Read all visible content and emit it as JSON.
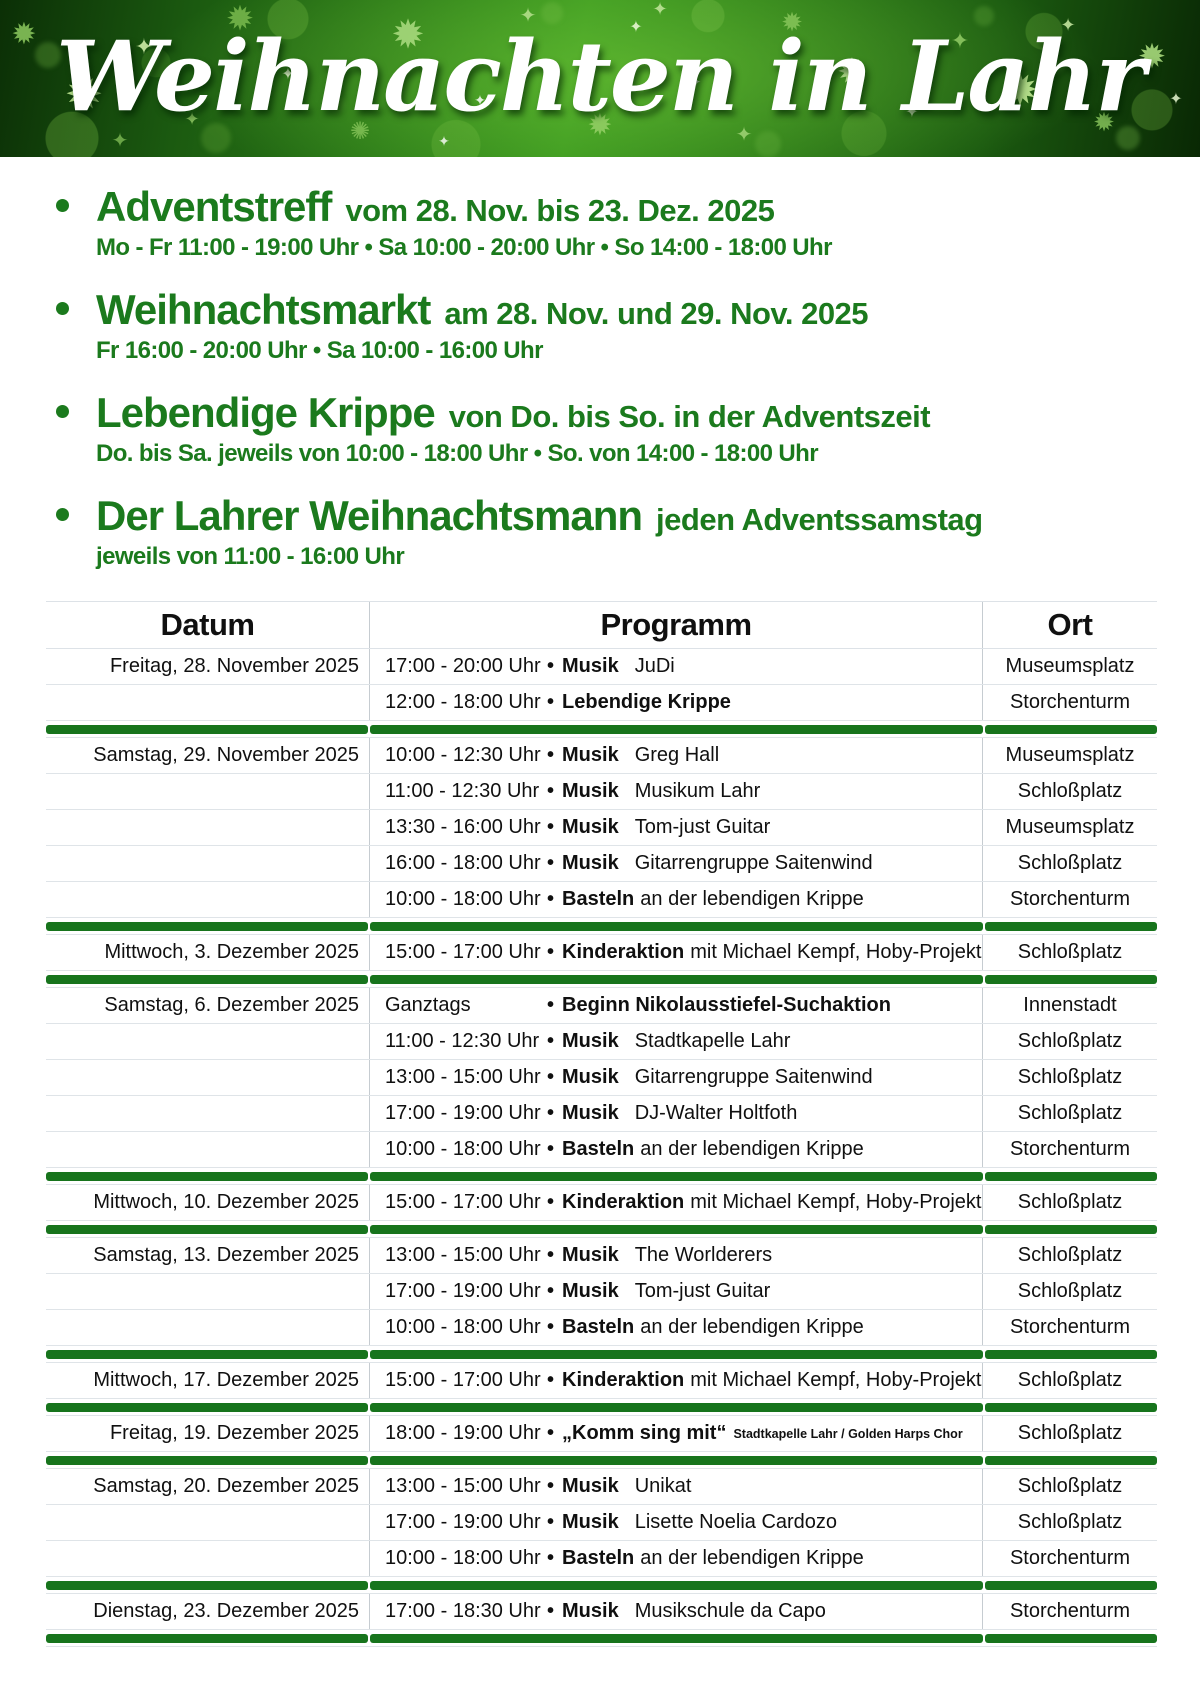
{
  "banner": {
    "title": "Weihnachten in Lahr"
  },
  "colors": {
    "accent_green": "#1b7a1d",
    "divider_green": "#17741c",
    "banner_dark_green": "#0b2f06",
    "banner_bright_green": "#38961e",
    "title_white": "#ffffff"
  },
  "events": [
    {
      "title": "Adventstreff",
      "subtitle": "vom 28. Nov. bis 23. Dez. 2025",
      "times": "Mo - Fr 11:00 - 19:00 Uhr  •  Sa 10:00 - 20:00 Uhr  •  So 14:00 - 18:00 Uhr"
    },
    {
      "title": "Weihnachtsmarkt",
      "subtitle": "am 28. Nov. und 29. Nov. 2025",
      "times": "Fr 16:00 - 20:00 Uhr  •  Sa 10:00 - 16:00 Uhr"
    },
    {
      "title": "Lebendige Krippe",
      "subtitle": "von Do. bis So. in der Adventszeit",
      "times": "Do. bis Sa. jeweils von 10:00 - 18:00 Uhr  •  So. von 14:00 - 18:00 Uhr"
    },
    {
      "title": "Der Lahrer Weihnachtsmann",
      "subtitle": "jeden Adventssamstag",
      "times": "jeweils von 11:00 - 16:00 Uhr"
    }
  ],
  "table": {
    "headers": [
      "Datum",
      "Programm",
      "Ort"
    ],
    "groups": [
      {
        "date": "Freitag, 28. November 2025",
        "rows": [
          {
            "time": "17:00 - 20:00 Uhr",
            "bold": "Musik",
            "rest": "JuDi",
            "small": "",
            "ort": "Museumsplatz"
          },
          {
            "time": "12:00 - 18:00 Uhr",
            "bold": "Lebendige Krippe",
            "rest": "",
            "small": "",
            "ort": "Storchenturm"
          }
        ]
      },
      {
        "date": "Samstag, 29. November 2025",
        "rows": [
          {
            "time": "10:00 - 12:30 Uhr",
            "bold": "Musik",
            "rest": "Greg Hall",
            "small": "",
            "ort": "Museumsplatz"
          },
          {
            "time": "11:00 - 12:30 Uhr",
            "bold": "Musik",
            "rest": "Musikum Lahr",
            "small": "",
            "ort": "Schloßplatz"
          },
          {
            "time": "13:30 - 16:00 Uhr",
            "bold": "Musik",
            "rest": "Tom-just Guitar",
            "small": "",
            "ort": "Museumsplatz"
          },
          {
            "time": "16:00 - 18:00 Uhr",
            "bold": "Musik",
            "rest": "Gitarrengruppe Saitenwind",
            "small": "",
            "ort": "Schloßplatz"
          },
          {
            "time": "10:00 - 18:00 Uhr",
            "bold": "Basteln",
            "rest": "an der lebendigen Krippe",
            "small": "",
            "ort": "Storchenturm"
          }
        ]
      },
      {
        "date": "Mittwoch, 3. Dezember 2025",
        "rows": [
          {
            "time": "15:00 - 17:00 Uhr",
            "bold": "Kinderaktion",
            "rest": "mit Michael Kempf,  Hoby-Projekt",
            "small": "",
            "ort": "Schloßplatz"
          }
        ]
      },
      {
        "date": "Samstag, 6. Dezember 2025",
        "rows": [
          {
            "time": "Ganztags",
            "bold": "Beginn Nikolausstiefel-Suchaktion",
            "rest": "",
            "small": "",
            "ort": "Innenstadt"
          },
          {
            "time": "11:00 - 12:30 Uhr",
            "bold": "Musik",
            "rest": "Stadtkapelle Lahr",
            "small": "",
            "ort": "Schloßplatz"
          },
          {
            "time": "13:00 - 15:00 Uhr",
            "bold": "Musik",
            "rest": "Gitarrengruppe Saitenwind",
            "small": "",
            "ort": "Schloßplatz"
          },
          {
            "time": "17:00 - 19:00 Uhr",
            "bold": "Musik",
            "rest": "DJ-Walter Holtfoth",
            "small": "",
            "ort": "Schloßplatz"
          },
          {
            "time": "10:00 - 18:00 Uhr",
            "bold": "Basteln",
            "rest": "an der lebendigen Krippe",
            "small": "",
            "ort": "Storchenturm"
          }
        ]
      },
      {
        "date": "Mittwoch, 10. Dezember 2025",
        "rows": [
          {
            "time": "15:00 - 17:00 Uhr",
            "bold": "Kinderaktion",
            "rest": "mit Michael Kempf,  Hoby-Projekt",
            "small": "",
            "ort": "Schloßplatz"
          }
        ]
      },
      {
        "date": "Samstag, 13. Dezember 2025",
        "rows": [
          {
            "time": "13:00 - 15:00 Uhr",
            "bold": "Musik",
            "rest": "The Worlderers",
            "small": "",
            "ort": "Schloßplatz"
          },
          {
            "time": "17:00 - 19:00 Uhr",
            "bold": "Musik",
            "rest": "Tom-just Guitar",
            "small": "",
            "ort": "Schloßplatz"
          },
          {
            "time": "10:00 - 18:00 Uhr",
            "bold": "Basteln",
            "rest": "an der lebendigen Krippe",
            "small": "",
            "ort": "Storchenturm"
          }
        ]
      },
      {
        "date": "Mittwoch, 17. Dezember 2025",
        "rows": [
          {
            "time": "15:00 - 17:00 Uhr",
            "bold": "Kinderaktion",
            "rest": "mit Michael Kempf,  Hoby-Projekt",
            "small": "",
            "ort": "Schloßplatz"
          }
        ]
      },
      {
        "date": "Freitag, 19. Dezember 2025",
        "rows": [
          {
            "time": "18:00 - 19:00 Uhr",
            "bold": "„Komm sing mit“",
            "rest": "",
            "small": "Stadtkapelle Lahr / Golden Harps Chor",
            "ort": "Schloßplatz"
          }
        ]
      },
      {
        "date": "Samstag, 20. Dezember 2025",
        "rows": [
          {
            "time": "13:00 - 15:00 Uhr",
            "bold": "Musik",
            "rest": "Unikat",
            "small": "",
            "ort": "Schloßplatz"
          },
          {
            "time": "17:00 - 19:00 Uhr",
            "bold": "Musik",
            "rest": "Lisette Noelia Cardozo",
            "small": "",
            "ort": "Schloßplatz"
          },
          {
            "time": "10:00 - 18:00 Uhr",
            "bold": "Basteln",
            "rest": "an der lebendigen Krippe",
            "small": "",
            "ort": "Storchenturm"
          }
        ]
      },
      {
        "date": "Dienstag, 23. Dezember 2025",
        "rows": [
          {
            "time": "17:00 - 18:30 Uhr",
            "bold": "Musik",
            "rest": "Musikschule da Capo",
            "small": "",
            "ort": "Storchenturm"
          }
        ]
      }
    ]
  }
}
